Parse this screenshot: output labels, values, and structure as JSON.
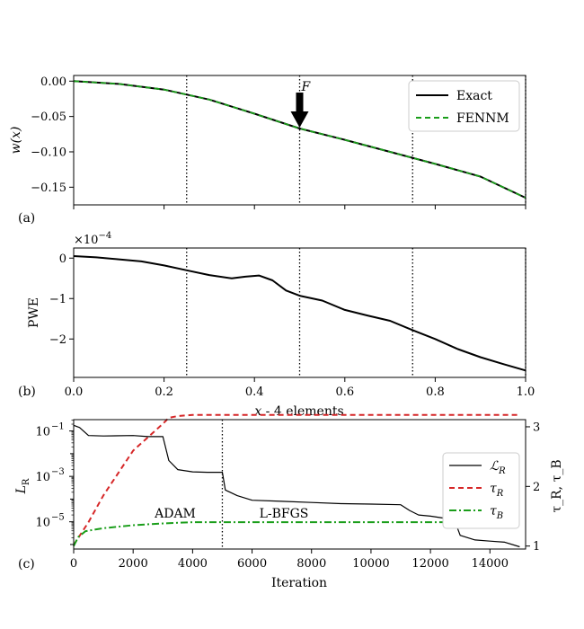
{
  "chart_data": [
    {
      "id": "a",
      "type": "line",
      "panel_label": "(a)",
      "ylabel": "w(x)",
      "xlim": [
        0,
        1
      ],
      "ylim": [
        -0.175,
        0.008
      ],
      "yticks": [
        0.0,
        -0.05,
        -0.1,
        -0.15
      ],
      "ytick_labels": [
        "0.00",
        "−0.05",
        "−0.10",
        "−0.15"
      ],
      "vlines": [
        0.25,
        0.5,
        0.75,
        1.0
      ],
      "annotation": {
        "label": "F",
        "x": 0.5
      },
      "legend_position": "top-right",
      "series": [
        {
          "name": "Exact",
          "style": "solid",
          "color": "#000000",
          "x": [
            0,
            0.1,
            0.2,
            0.3,
            0.4,
            0.5,
            0.6,
            0.7,
            0.8,
            0.9,
            1.0
          ],
          "y": [
            0,
            -0.004,
            -0.012,
            -0.026,
            -0.046,
            -0.067,
            -0.083,
            -0.1,
            -0.117,
            -0.135,
            -0.165
          ]
        },
        {
          "name": "FENNM",
          "style": "dashed",
          "color": "#1a9e1a",
          "x": [
            0,
            0.1,
            0.2,
            0.3,
            0.4,
            0.5,
            0.6,
            0.7,
            0.8,
            0.9,
            1.0
          ],
          "y": [
            0,
            -0.004,
            -0.012,
            -0.026,
            -0.046,
            -0.067,
            -0.083,
            -0.1,
            -0.117,
            -0.135,
            -0.165
          ]
        }
      ]
    },
    {
      "id": "b",
      "type": "line",
      "panel_label": "(b)",
      "ylabel": "PWE",
      "scale_label": "×10",
      "scale_exp": "−4",
      "xlim": [
        0,
        1
      ],
      "ylim": [
        -2.95,
        0.25
      ],
      "xticks": [
        0,
        0.2,
        0.4,
        0.6,
        0.8,
        1.0
      ],
      "xtick_labels": [
        "0.0",
        "0.2",
        "0.4",
        "0.6",
        "0.8",
        "1.0"
      ],
      "yticks": [
        0,
        -1,
        -2
      ],
      "ytick_labels": [
        "0",
        "−1",
        "−2"
      ],
      "xlabel_var": "x",
      "xlabel_suffix": " - 4 elements",
      "vlines": [
        0.25,
        0.5,
        0.75,
        1.0
      ],
      "series": [
        {
          "name": "PWE",
          "style": "solid",
          "color": "#000000",
          "x": [
            0,
            0.05,
            0.1,
            0.15,
            0.2,
            0.25,
            0.3,
            0.35,
            0.38,
            0.41,
            0.44,
            0.47,
            0.5,
            0.55,
            0.6,
            0.65,
            0.7,
            0.75,
            0.8,
            0.85,
            0.9,
            0.95,
            1.0
          ],
          "y": [
            0.05,
            0.02,
            -0.03,
            -0.08,
            -0.18,
            -0.3,
            -0.42,
            -0.5,
            -0.46,
            -0.43,
            -0.55,
            -0.8,
            -0.93,
            -1.05,
            -1.28,
            -1.42,
            -1.55,
            -1.78,
            -2.0,
            -2.25,
            -2.45,
            -2.62,
            -2.78
          ]
        }
      ]
    },
    {
      "id": "c",
      "type": "line",
      "panel_label": "(c)",
      "xlabel": "Iteration",
      "ylabel_left_base": "L",
      "ylabel_left_sub": "R",
      "ylabel_right": "τ_R, τ_B",
      "xlim": [
        0,
        15200
      ],
      "log_ylim": [
        -6.2,
        -0.5
      ],
      "right_ylim": [
        0.95,
        3.12
      ],
      "xticks": [
        0,
        2000,
        4000,
        6000,
        8000,
        10000,
        12000,
        14000
      ],
      "xtick_labels": [
        "0",
        "2000",
        "4000",
        "6000",
        "8000",
        "10000",
        "12000",
        "14000"
      ],
      "yticks_log": [
        -1,
        -3,
        -5
      ],
      "ytick_labels_left_base": "10",
      "ytick_labels_left_exp": [
        "−1",
        "−3",
        "−5"
      ],
      "yticks_right": [
        1,
        2,
        3
      ],
      "ytick_labels_right": [
        "1",
        "2",
        "3"
      ],
      "vline": 5000,
      "phase_labels": {
        "left": "ADAM",
        "right": "L-BFGS"
      },
      "legend_position": "right",
      "series": [
        {
          "name": "L_R",
          "legend_base": "ℒ",
          "legend_sub": "R",
          "axis": "left",
          "style": "solid",
          "color": "#000000",
          "x": [
            0,
            200,
            500,
            1000,
            2000,
            2500,
            3000,
            3200,
            3500,
            4000,
            4500,
            5000,
            5100,
            5500,
            6000,
            7000,
            8000,
            9000,
            10000,
            11000,
            11300,
            11600,
            12000,
            12500,
            12800,
            13000,
            13500,
            14000,
            14500,
            15000
          ],
          "log10": [
            -0.75,
            -0.85,
            -1.2,
            -1.22,
            -1.2,
            -1.25,
            -1.25,
            -2.3,
            -2.7,
            -2.8,
            -2.82,
            -2.82,
            -3.6,
            -3.85,
            -4.05,
            -4.1,
            -4.15,
            -4.2,
            -4.22,
            -4.25,
            -4.5,
            -4.7,
            -4.75,
            -4.85,
            -4.9,
            -5.6,
            -5.8,
            -5.85,
            -5.9,
            -6.1
          ]
        },
        {
          "name": "tau_R",
          "legend_base": "τ",
          "legend_sub": "R",
          "axis": "right",
          "style": "dashed",
          "color": "#d62728",
          "x": [
            0,
            500,
            1000,
            2000,
            3000,
            3200,
            3500,
            4000,
            5000,
            6000,
            10000,
            15000
          ],
          "values": [
            1.02,
            1.4,
            1.85,
            2.6,
            3.05,
            3.15,
            3.18,
            3.2,
            3.2,
            3.2,
            3.2,
            3.2
          ]
        },
        {
          "name": "tau_B",
          "legend_base": "τ",
          "legend_sub": "B",
          "axis": "right",
          "style": "dashdot",
          "color": "#1a9e1a",
          "x": [
            0,
            150,
            400,
            1000,
            2000,
            3000,
            4000,
            5000,
            8000,
            12000,
            15000
          ],
          "values": [
            1.0,
            1.15,
            1.25,
            1.3,
            1.35,
            1.38,
            1.4,
            1.4,
            1.4,
            1.4,
            1.4
          ]
        }
      ]
    }
  ]
}
